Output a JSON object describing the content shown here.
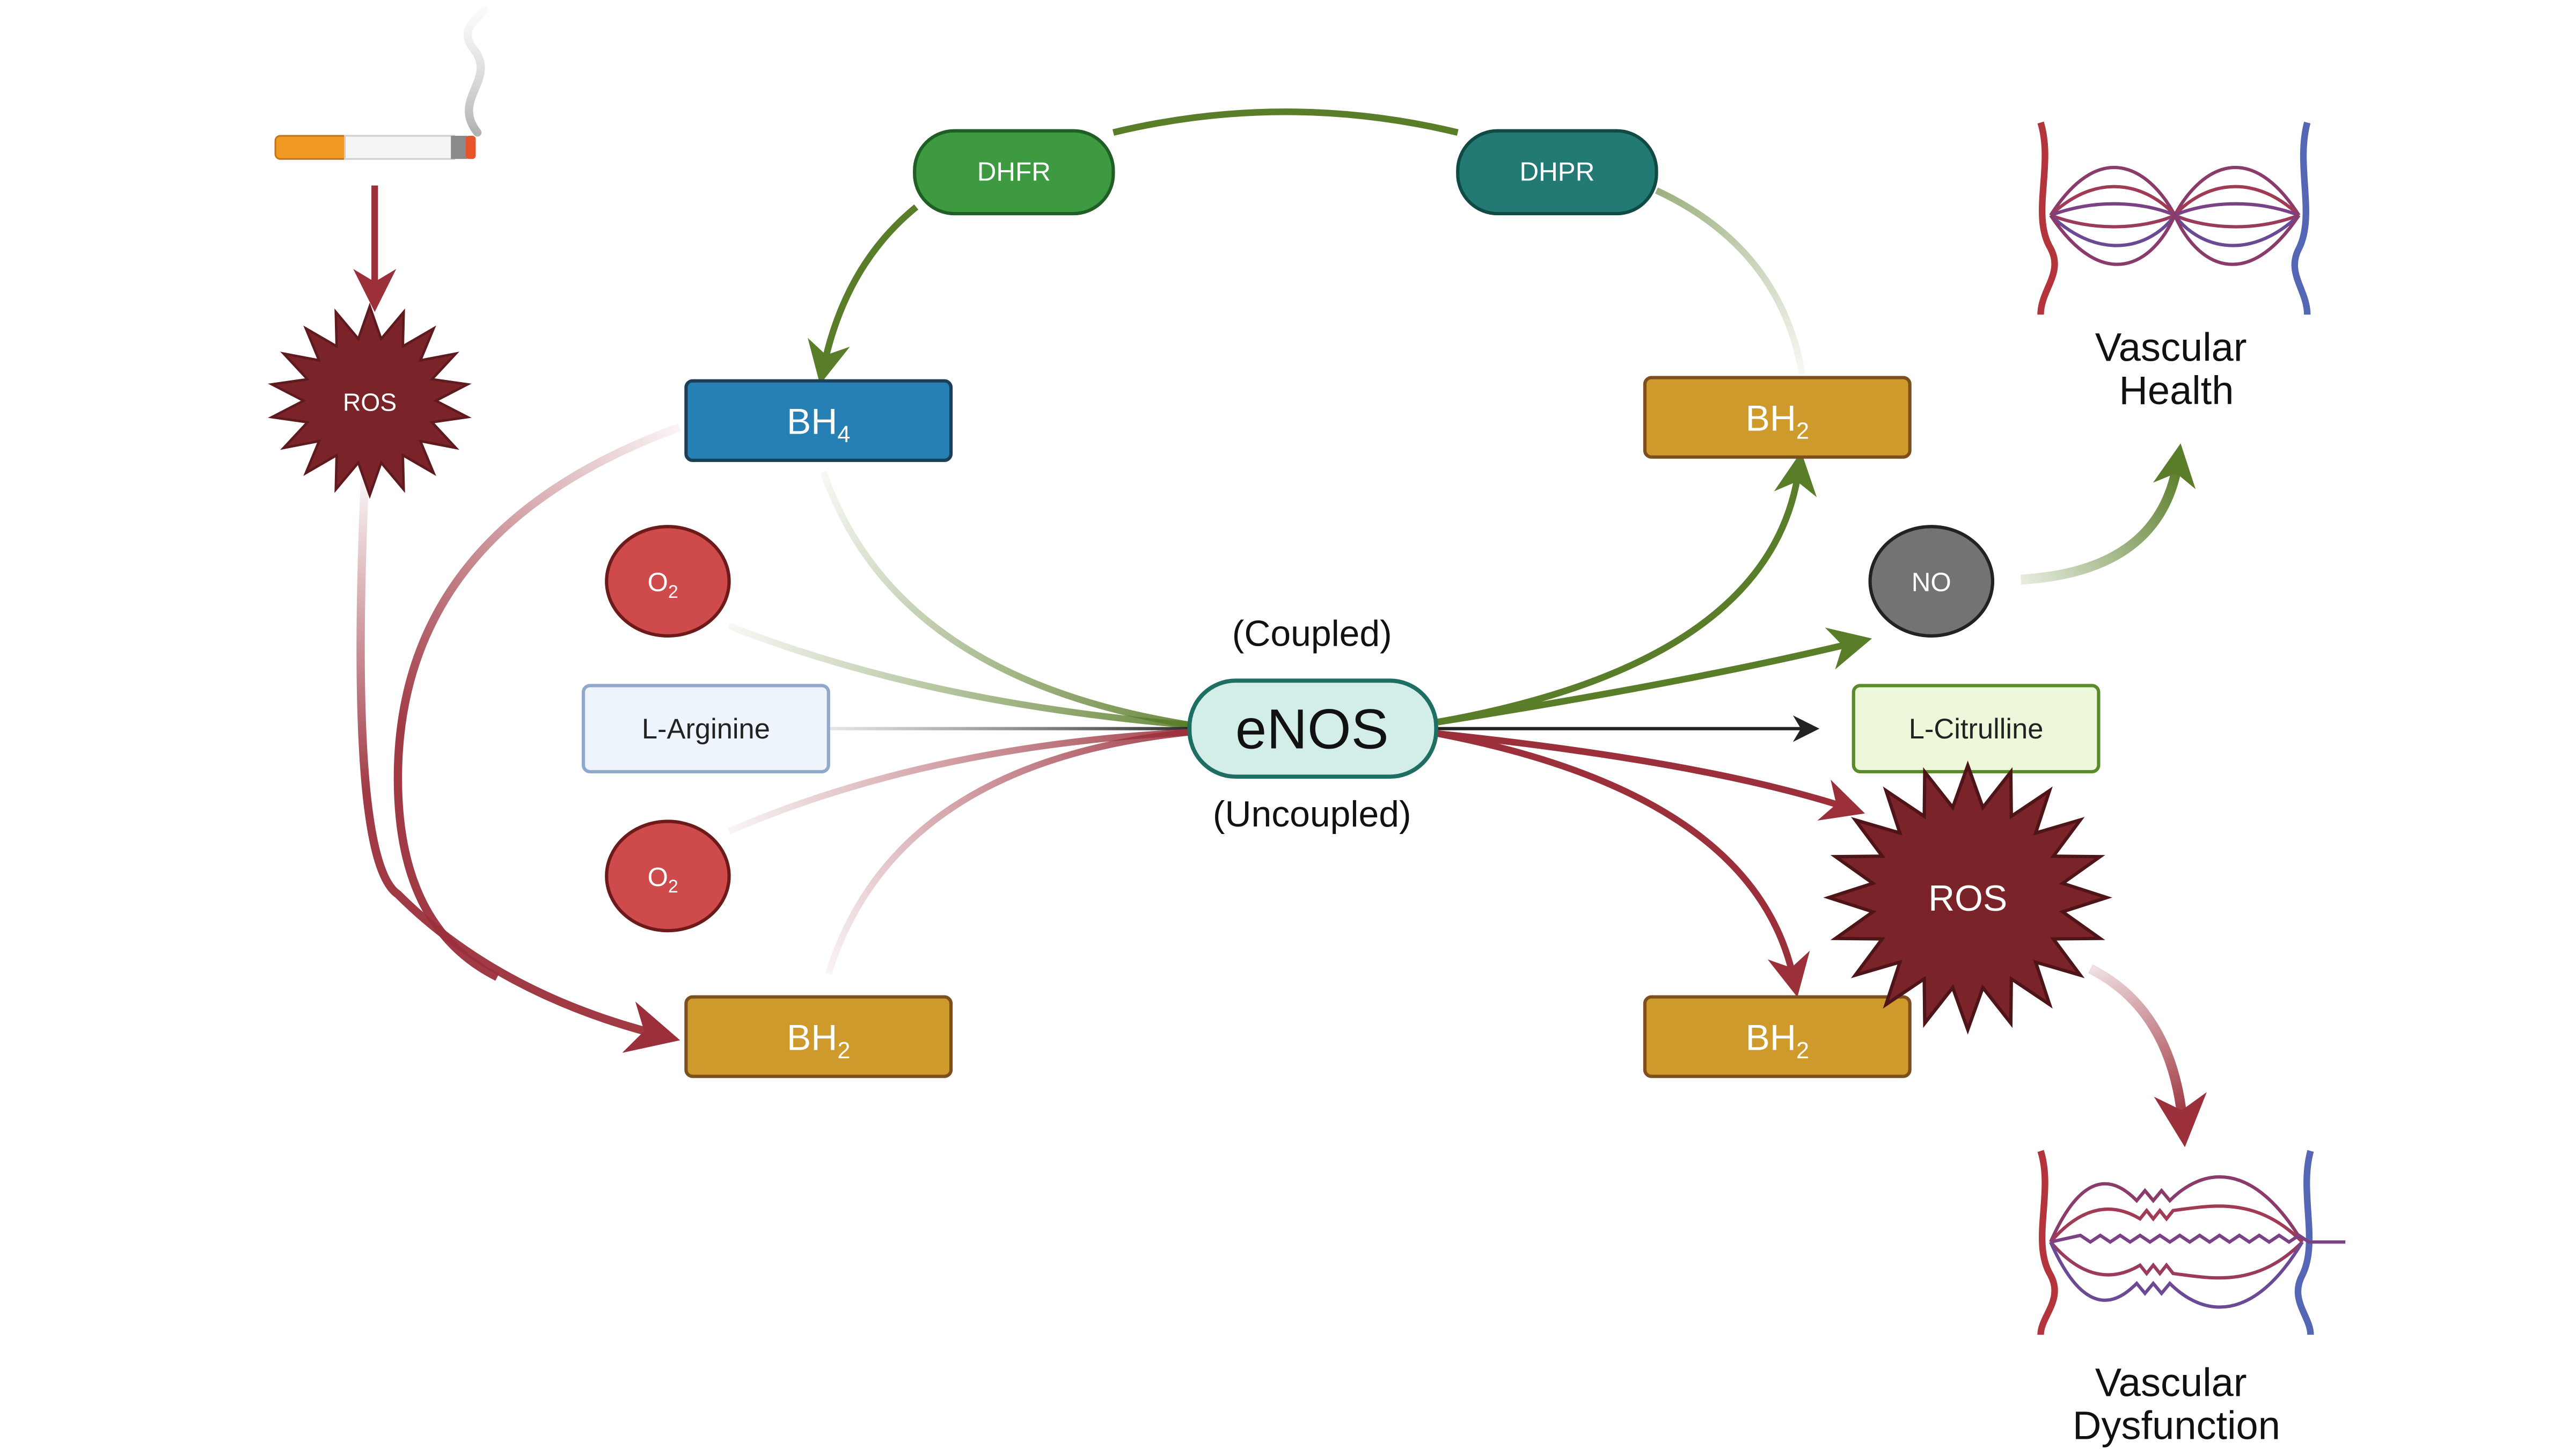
{
  "colors": {
    "green_dark": "#5a7d29",
    "red_dark": "#9b2f3a",
    "ros_fill": "#7a2328",
    "bh4_fill": "#2780b3",
    "bh2_fill": "#cd9a2b",
    "bh2_stroke": "#7d4f1f",
    "dhfr_fill": "#3e9a40",
    "dhpr_fill": "#237a74",
    "o2_fill": "#cf4a4a",
    "no_fill": "#737373",
    "enos_fill": "#d3ede9",
    "enos_stroke": "#1e6e64",
    "arginine_fill": "#eef4fb",
    "arginine_stroke": "#8fa8cc",
    "citrulline_fill": "#edf7da",
    "citrulline_stroke": "#5a8a2a",
    "artery": "#b3353b",
    "vein": "#5566b5"
  },
  "nodes": {
    "dhfr": "DHFR",
    "dhpr": "DHPR",
    "bh4": {
      "base": "BH",
      "sub": "4"
    },
    "bh2_top_right": {
      "base": "BH",
      "sub": "2"
    },
    "bh2_bottom_left": {
      "base": "BH",
      "sub": "2"
    },
    "bh2_bottom_right": {
      "base": "BH",
      "sub": "2"
    },
    "o2_upper": {
      "base": "O",
      "sub": "2"
    },
    "o2_lower": {
      "base": "O",
      "sub": "2"
    },
    "l_arginine": "L-Arginine",
    "l_citrulline": "L-Citrulline",
    "enos": "eNOS",
    "no": "NO",
    "ros_small": "ROS",
    "ros_large": "ROS"
  },
  "labels": {
    "coupled": "(Coupled)",
    "uncoupled": "(Uncoupled)",
    "vascular_health": [
      "Vascular",
      "Health"
    ],
    "vascular_dysfunction": [
      "Vascular",
      "Dysfunction"
    ]
  }
}
